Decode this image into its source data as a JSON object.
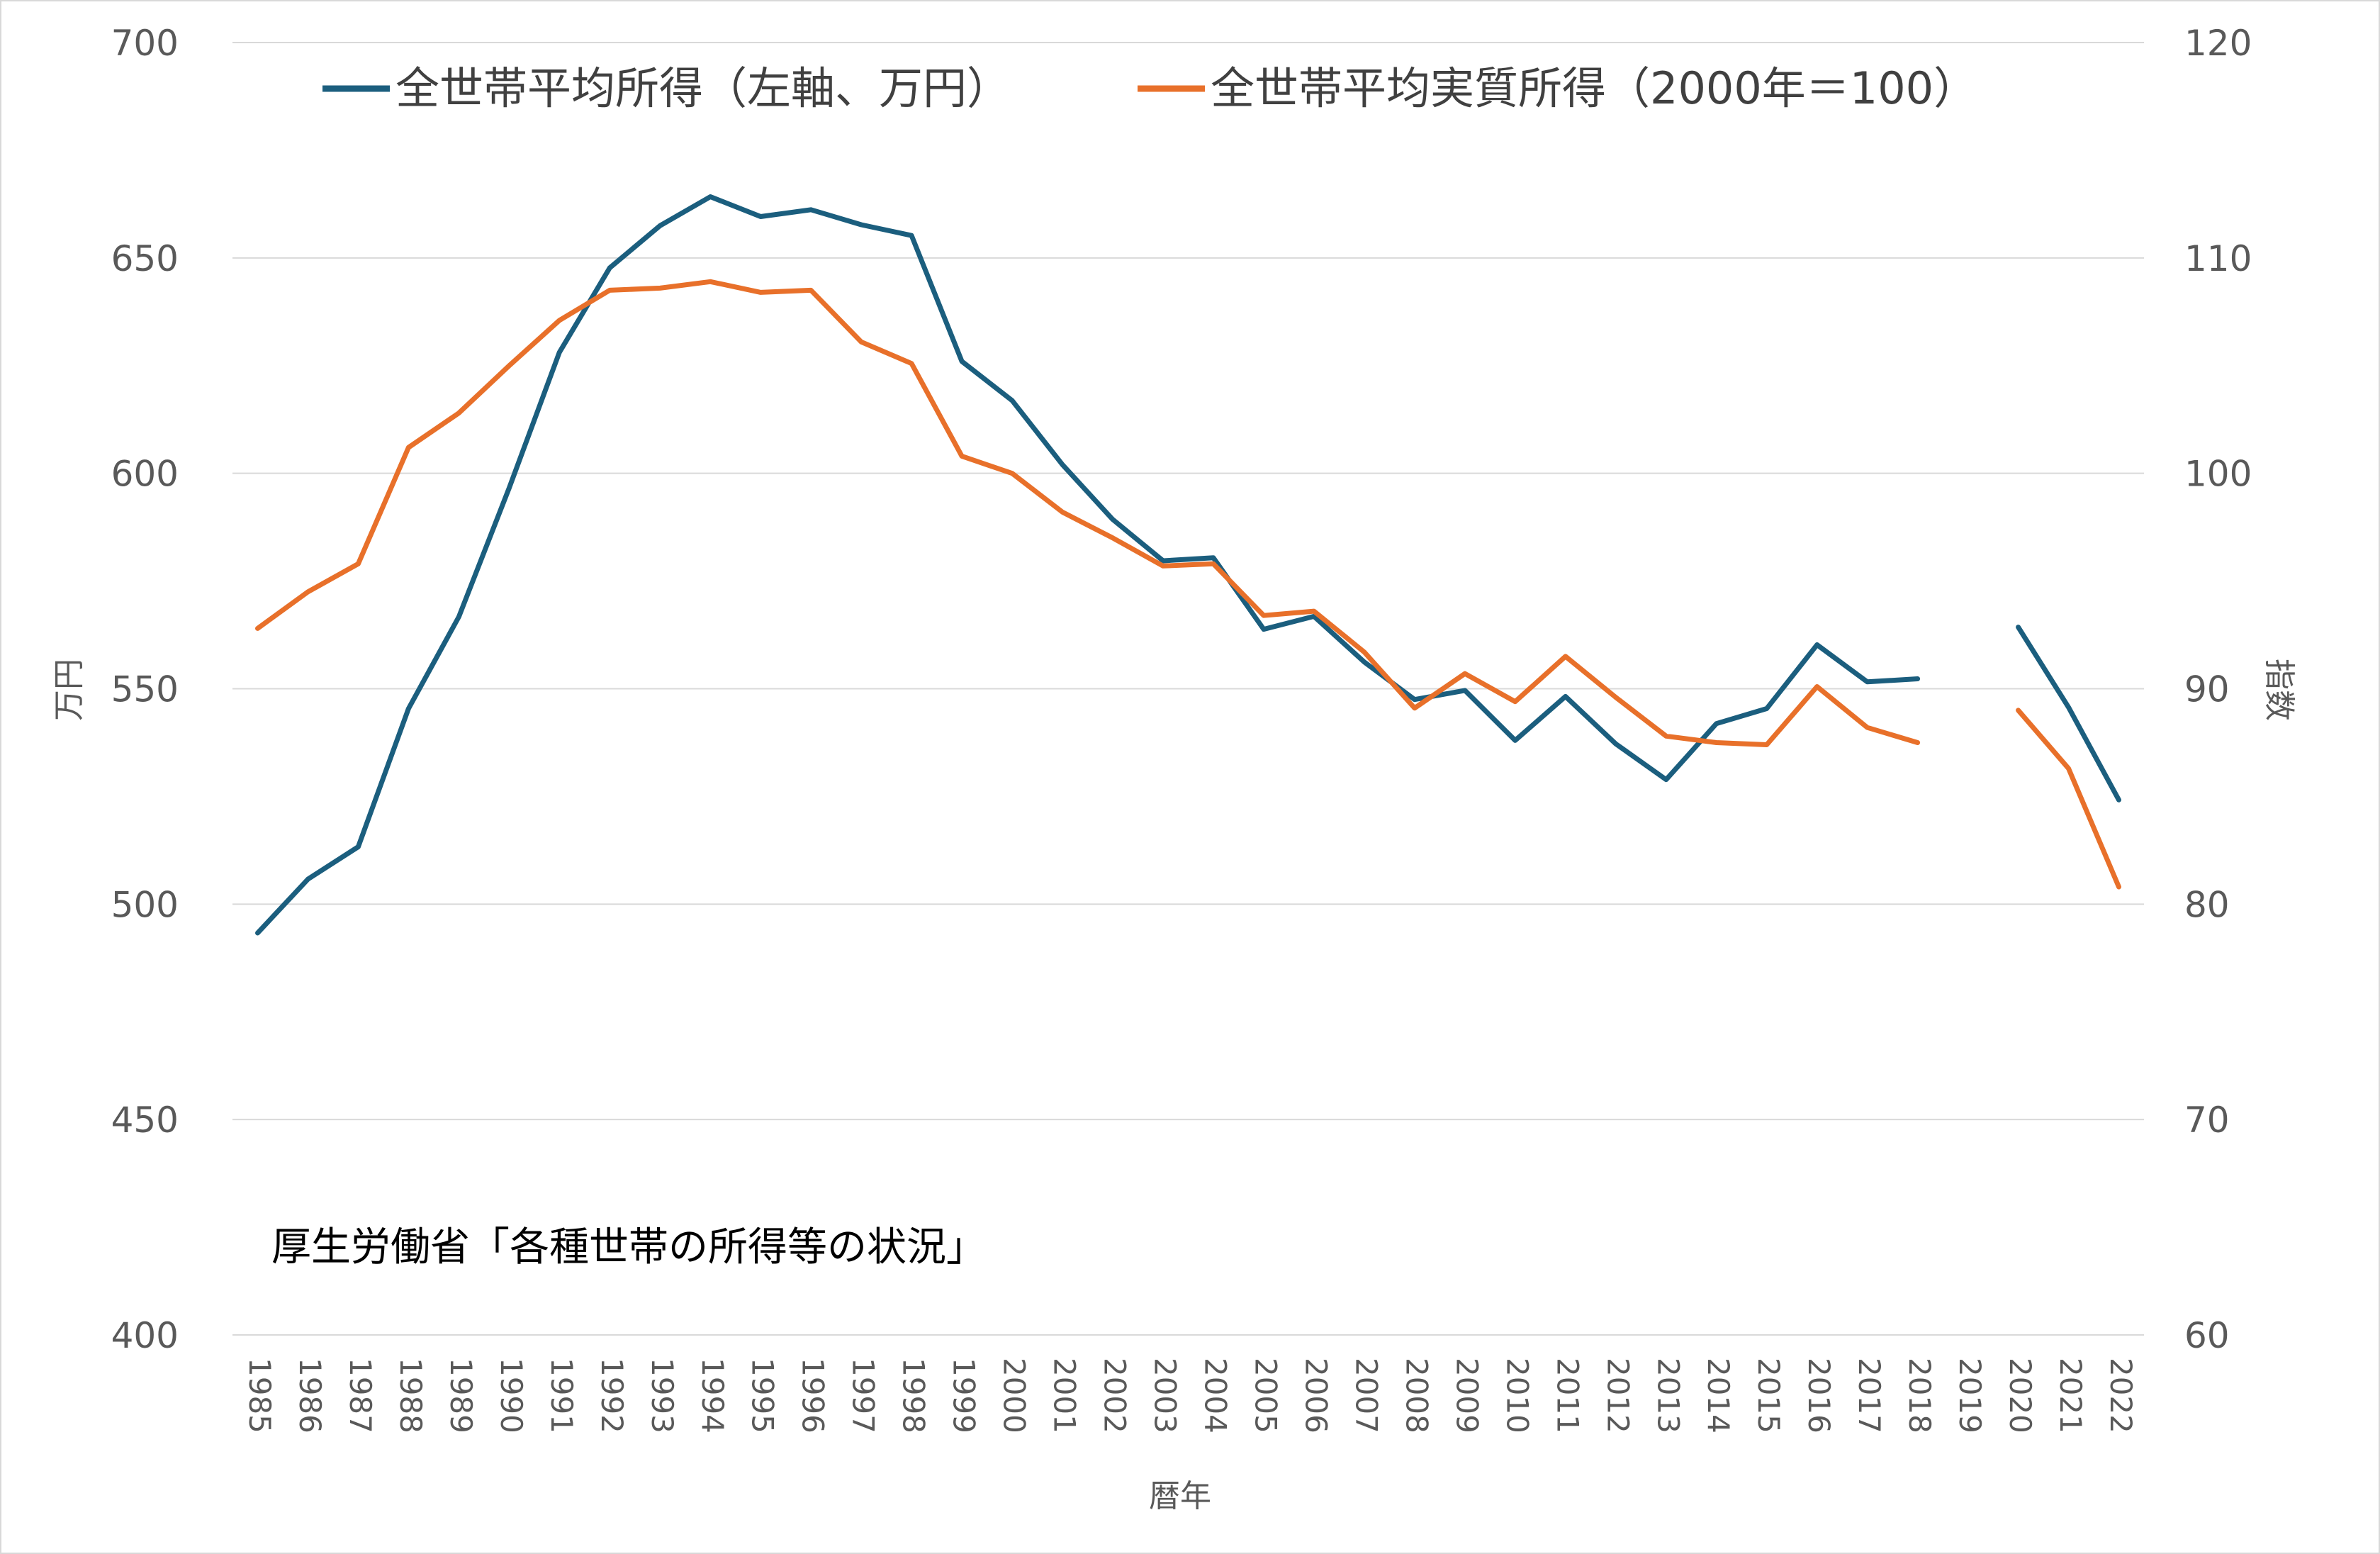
{
  "chart_data": {
    "type": "line",
    "title": "",
    "source_note": "厚生労働省「各種世帯の所得等の状況」",
    "xlabel": "暦年",
    "ylabel_left": "万円",
    "ylabel_right": "指数",
    "ylim_left": [
      400,
      700
    ],
    "ylim_right": [
      60,
      120
    ],
    "yticks_left": [
      400,
      450,
      500,
      550,
      600,
      650,
      700
    ],
    "yticks_right": [
      60,
      70,
      80,
      90,
      100,
      110,
      120
    ],
    "grid": true,
    "legend_position": "top",
    "categories": [
      "1985",
      "1986",
      "1987",
      "1988",
      "1989",
      "1990",
      "1991",
      "1992",
      "1993",
      "1994",
      "1995",
      "1996",
      "1997",
      "1998",
      "1999",
      "2000",
      "2001",
      "2002",
      "2003",
      "2004",
      "2005",
      "2006",
      "2007",
      "2008",
      "2009",
      "2010",
      "2011",
      "2012",
      "2013",
      "2014",
      "2015",
      "2016",
      "2017",
      "2018",
      "2019",
      "2020",
      "2021",
      "2022"
    ],
    "series": [
      {
        "name": "全世帯平均所得（左軸、万円）",
        "axis": "left",
        "color": "#1b5e7e",
        "values": [
          493.3,
          505.8,
          513.3,
          545.4,
          566.7,
          596.6,
          628.1,
          647.7,
          657.5,
          664.2,
          659.6,
          661.2,
          657.7,
          655.2,
          626.0,
          616.9,
          602.0,
          589.3,
          579.7,
          580.4,
          563.8,
          566.8,
          556.2,
          547.5,
          549.6,
          538.0,
          548.2,
          537.2,
          528.9,
          541.9,
          545.4,
          560.2,
          551.6,
          552.3,
          null,
          564.3,
          545.7,
          524.2
        ]
      },
      {
        "name": "全世帯平均実質所得（2000年＝100）",
        "axis": "right",
        "color": "#e8702a",
        "values": [
          92.8,
          94.5,
          95.8,
          101.2,
          102.8,
          105.0,
          107.1,
          108.5,
          108.6,
          108.9,
          108.4,
          108.5,
          106.1,
          105.1,
          100.8,
          100.0,
          98.2,
          97.0,
          95.7,
          95.8,
          93.4,
          93.6,
          91.7,
          89.1,
          90.7,
          89.4,
          91.5,
          89.6,
          87.8,
          87.5,
          87.4,
          90.1,
          88.2,
          87.5,
          null,
          89.0,
          86.3,
          80.8
        ]
      }
    ]
  }
}
